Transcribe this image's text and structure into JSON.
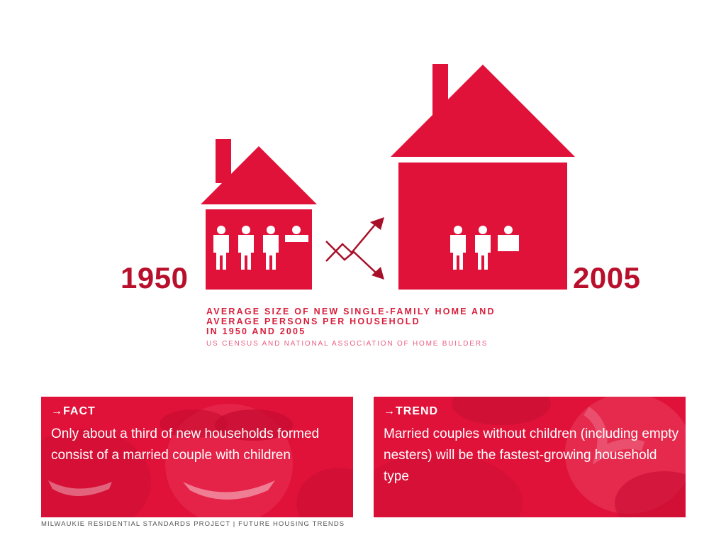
{
  "colors": {
    "house_red": "#e0123a",
    "year_dark_red": "#b8102c",
    "arrow_dark_red": "#a8102a",
    "caption_red": "#d81f3c",
    "source_pink": "#ea5f7f",
    "panel_red": "#e0123a"
  },
  "diagram": {
    "year_left": "1950",
    "year_right": "2005",
    "persons_1950": 3.5,
    "persons_2005": 2.5,
    "trend_icon": "crossing-up-down-arrows-icon"
  },
  "caption": {
    "line1": "AVERAGE SIZE OF NEW SINGLE-FAMILY HOME AND",
    "line2": "AVERAGE PERSONS PER HOUSEHOLD",
    "line3": "IN 1950 AND 2005",
    "source": "US CENSUS AND NATIONAL ASSOCIATION OF HOME BUILDERS"
  },
  "fact": {
    "heading": "→FACT",
    "text": "Only about a third of new households formed consist of a married couple with children"
  },
  "trend": {
    "heading": "→TREND",
    "text": "Married couples without children (including empty nesters) will be the fastest-growing household type"
  },
  "footer": "MILWAUKIE RESIDENTIAL STANDARDS PROJECT | FUTURE HOUSING TRENDS"
}
